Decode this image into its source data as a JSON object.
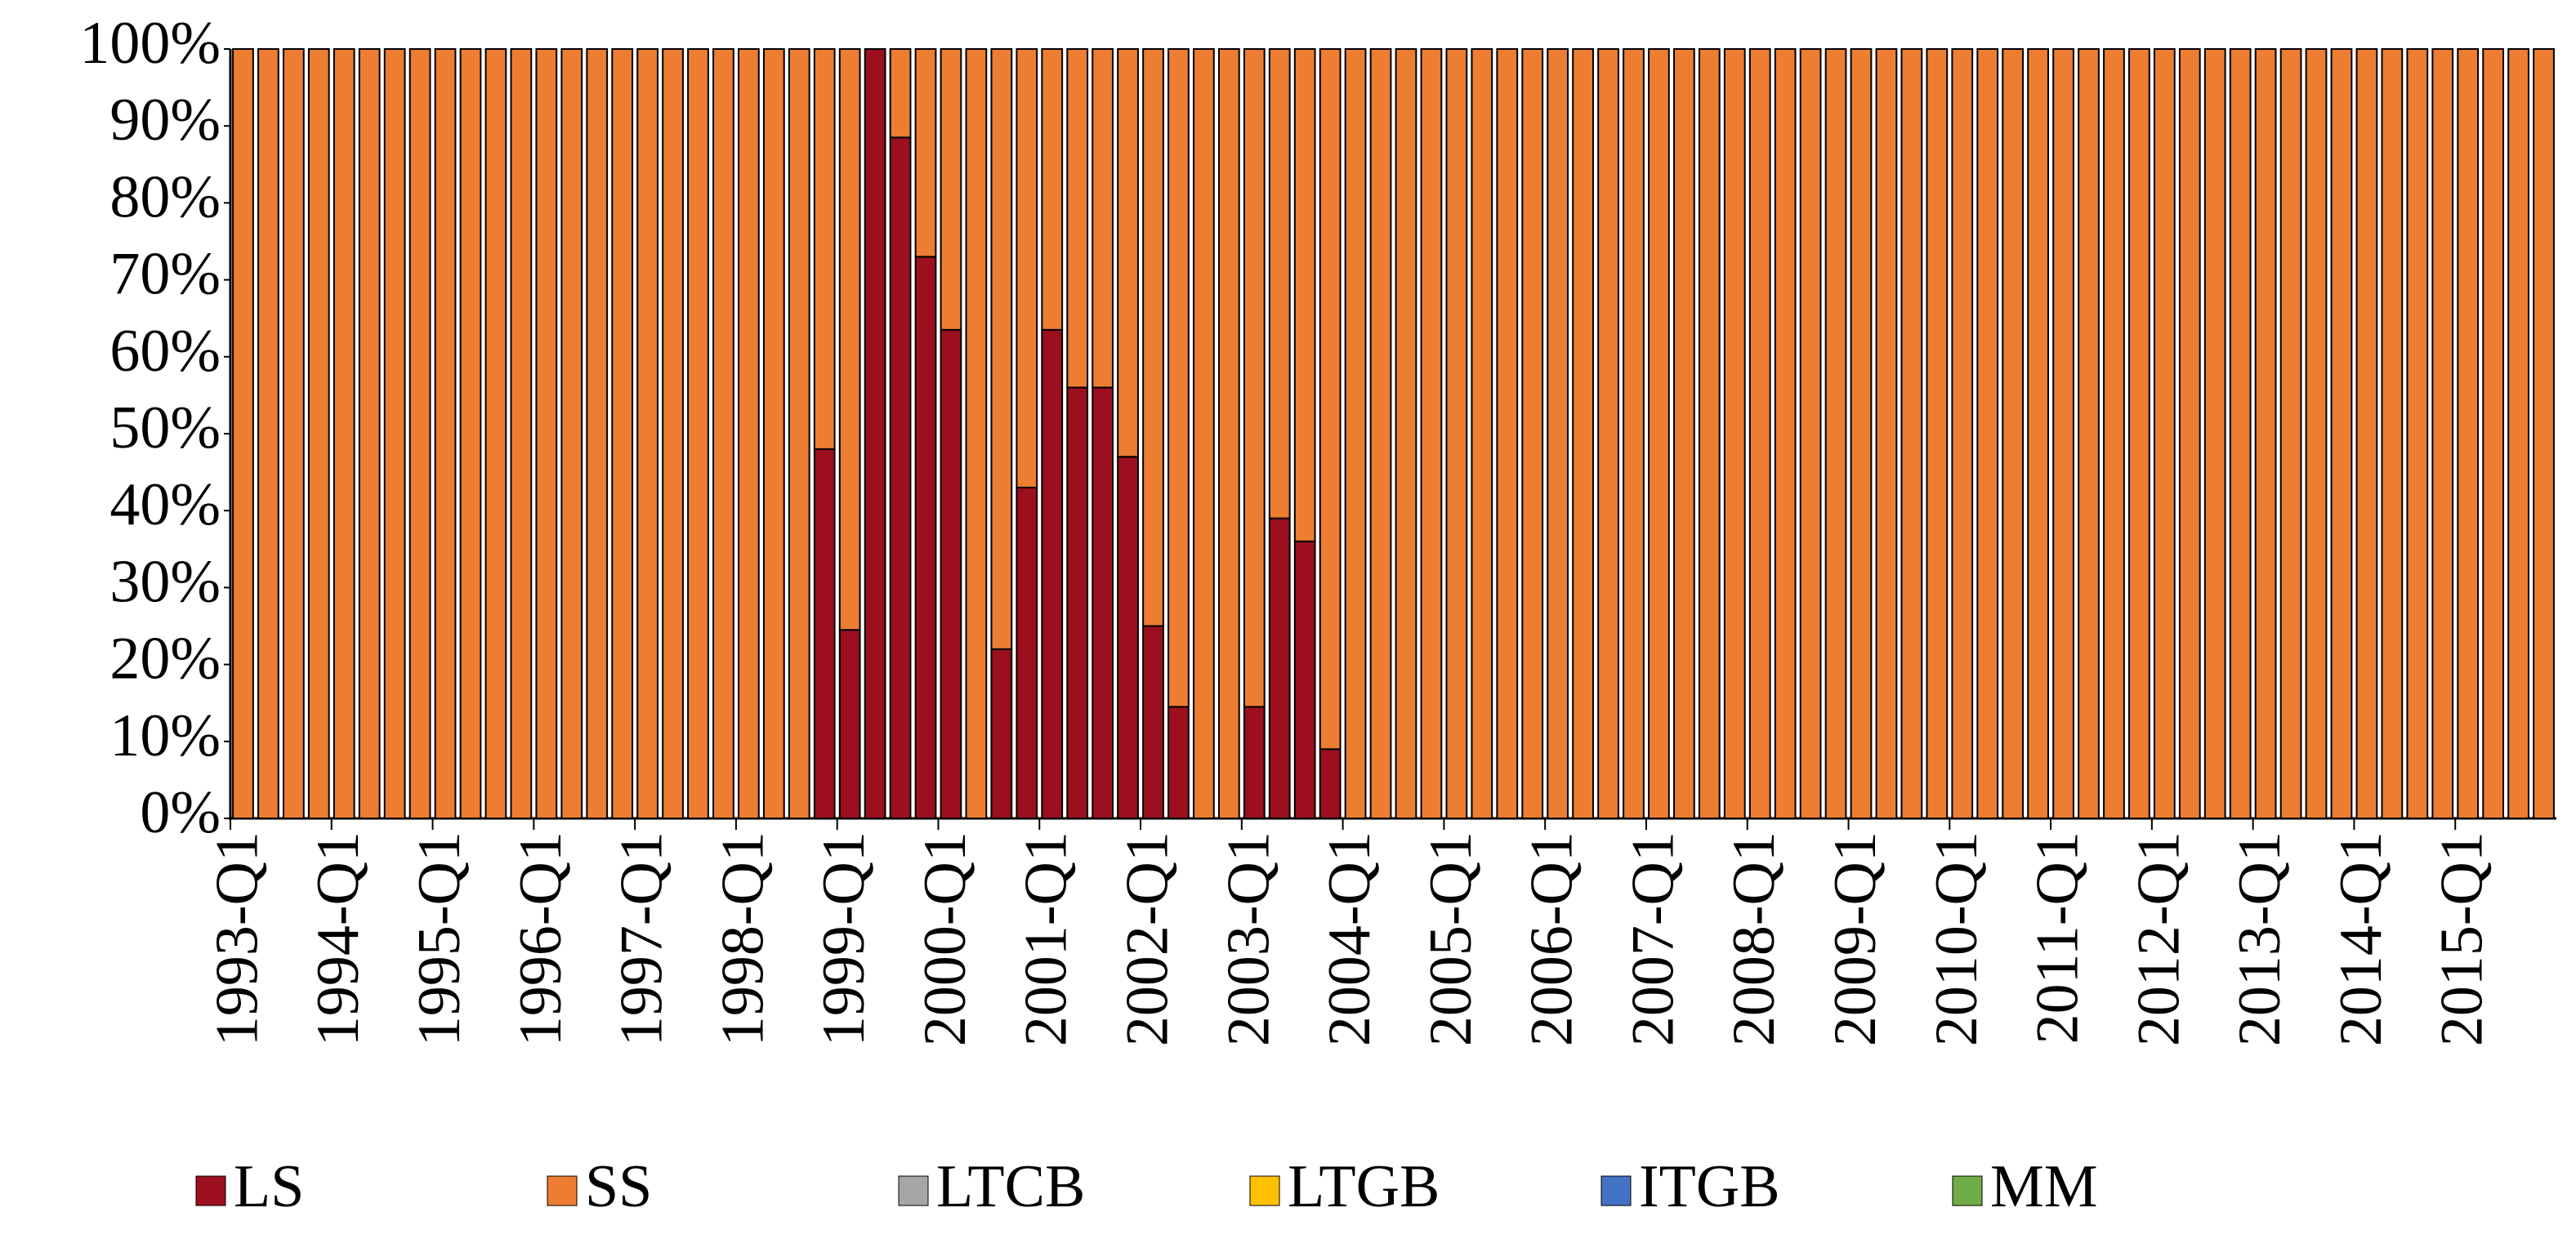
{
  "chart_data": {
    "type": "stacked_bar",
    "categories": [
      "1993-Q1",
      null,
      null,
      null,
      "1994-Q1",
      null,
      null,
      null,
      "1995-Q1",
      null,
      null,
      null,
      "1996-Q1",
      null,
      null,
      null,
      "1997-Q1",
      null,
      null,
      null,
      "1998-Q1",
      null,
      null,
      null,
      "1999-Q1",
      null,
      null,
      null,
      "2000-Q1",
      null,
      null,
      null,
      "2001-Q1",
      null,
      null,
      null,
      "2002-Q1",
      null,
      null,
      null,
      "2003-Q1",
      null,
      null,
      null,
      "2004-Q1",
      null,
      null,
      null,
      "2005-Q1",
      null,
      null,
      null,
      "2006-Q1",
      null,
      null,
      null,
      "2007-Q1",
      null,
      null,
      null,
      "2008-Q1",
      null,
      null,
      null,
      "2009-Q1",
      null,
      null,
      null,
      "2010-Q1",
      null,
      null,
      null,
      "2011-Q1",
      null,
      null,
      null,
      "2012-Q1",
      null,
      null,
      null,
      "2013-Q1",
      null,
      null,
      null,
      "2014-Q1",
      null,
      null,
      null,
      "2015-Q1",
      null,
      null,
      null
    ],
    "series": [
      {
        "name": "LS",
        "color": "#9b0f1e",
        "values": [
          0,
          0,
          0,
          0,
          0,
          0,
          0,
          0,
          0,
          0,
          0,
          0,
          0,
          0,
          0,
          0,
          0,
          0,
          0,
          0,
          0,
          0,
          0,
          48,
          24.5,
          100,
          88.5,
          73,
          63.5,
          0,
          22,
          43,
          63.5,
          56,
          56,
          47,
          25,
          14.5,
          0,
          0,
          14.5,
          39,
          36,
          9,
          0,
          0,
          0,
          0,
          0,
          0,
          0,
          0,
          0,
          0,
          0,
          0,
          0,
          0,
          0,
          0,
          0,
          0,
          0,
          0,
          0,
          0,
          0,
          0,
          0,
          0,
          0,
          0,
          0,
          0,
          0,
          0,
          0,
          0,
          0,
          0,
          0,
          0,
          0,
          0,
          0,
          0,
          0,
          0,
          0,
          0,
          0,
          0
        ]
      },
      {
        "name": "SS",
        "color": "#ed7d31",
        "values": [
          100,
          100,
          100,
          100,
          100,
          100,
          100,
          100,
          100,
          100,
          100,
          100,
          100,
          100,
          100,
          100,
          100,
          100,
          100,
          100,
          100,
          100,
          100,
          52,
          75.5,
          0,
          11.5,
          27,
          36.5,
          100,
          78,
          57,
          36.5,
          44,
          44,
          53,
          75,
          85.5,
          100,
          100,
          85.5,
          61,
          64,
          91,
          100,
          100,
          100,
          100,
          100,
          100,
          100,
          100,
          100,
          100,
          100,
          100,
          100,
          100,
          100,
          100,
          100,
          100,
          100,
          100,
          100,
          100,
          100,
          100,
          100,
          100,
          100,
          100,
          100,
          100,
          100,
          100,
          100,
          100,
          100,
          100,
          100,
          100,
          100,
          100,
          100,
          100,
          100,
          100,
          100,
          100,
          100,
          100
        ]
      },
      {
        "name": "LTCB",
        "color": "#a5a5a5",
        "values": [
          0,
          0,
          0,
          0,
          0,
          0,
          0,
          0,
          0,
          0,
          0,
          0,
          0,
          0,
          0,
          0,
          0,
          0,
          0,
          0,
          0,
          0,
          0,
          0,
          0,
          0,
          0,
          0,
          0,
          0,
          0,
          0,
          0,
          0,
          0,
          0,
          0,
          0,
          0,
          0,
          0,
          0,
          0,
          0,
          0,
          0,
          0,
          0,
          0,
          0,
          0,
          0,
          0,
          0,
          0,
          0,
          0,
          0,
          0,
          0,
          0,
          0,
          0,
          0,
          0,
          0,
          0,
          0,
          0,
          0,
          0,
          0,
          0,
          0,
          0,
          0,
          0,
          0,
          0,
          0,
          0,
          0,
          0,
          0,
          0,
          0,
          0,
          0,
          0,
          0,
          0,
          0
        ]
      },
      {
        "name": "LTGB",
        "color": "#ffc000",
        "values": [
          0,
          0,
          0,
          0,
          0,
          0,
          0,
          0,
          0,
          0,
          0,
          0,
          0,
          0,
          0,
          0,
          0,
          0,
          0,
          0,
          0,
          0,
          0,
          0,
          0,
          0,
          0,
          0,
          0,
          0,
          0,
          0,
          0,
          0,
          0,
          0,
          0,
          0,
          0,
          0,
          0,
          0,
          0,
          0,
          0,
          0,
          0,
          0,
          0,
          0,
          0,
          0,
          0,
          0,
          0,
          0,
          0,
          0,
          0,
          0,
          0,
          0,
          0,
          0,
          0,
          0,
          0,
          0,
          0,
          0,
          0,
          0,
          0,
          0,
          0,
          0,
          0,
          0,
          0,
          0,
          0,
          0,
          0,
          0,
          0,
          0,
          0,
          0,
          0,
          0,
          0,
          0
        ]
      },
      {
        "name": "ITGB",
        "color": "#4472c4",
        "values": [
          0,
          0,
          0,
          0,
          0,
          0,
          0,
          0,
          0,
          0,
          0,
          0,
          0,
          0,
          0,
          0,
          0,
          0,
          0,
          0,
          0,
          0,
          0,
          0,
          0,
          0,
          0,
          0,
          0,
          0,
          0,
          0,
          0,
          0,
          0,
          0,
          0,
          0,
          0,
          0,
          0,
          0,
          0,
          0,
          0,
          0,
          0,
          0,
          0,
          0,
          0,
          0,
          0,
          0,
          0,
          0,
          0,
          0,
          0,
          0,
          0,
          0,
          0,
          0,
          0,
          0,
          0,
          0,
          0,
          0,
          0,
          0,
          0,
          0,
          0,
          0,
          0,
          0,
          0,
          0,
          0,
          0,
          0,
          0,
          0,
          0,
          0,
          0,
          0,
          0,
          0,
          0
        ]
      },
      {
        "name": "MM",
        "color": "#70ad47",
        "values": [
          0,
          0,
          0,
          0,
          0,
          0,
          0,
          0,
          0,
          0,
          0,
          0,
          0,
          0,
          0,
          0,
          0,
          0,
          0,
          0,
          0,
          0,
          0,
          0,
          0,
          0,
          0,
          0,
          0,
          0,
          0,
          0,
          0,
          0,
          0,
          0,
          0,
          0,
          0,
          0,
          0,
          0,
          0,
          0,
          0,
          0,
          0,
          0,
          0,
          0,
          0,
          0,
          0,
          0,
          0,
          0,
          0,
          0,
          0,
          0,
          0,
          0,
          0,
          0,
          0,
          0,
          0,
          0,
          0,
          0,
          0,
          0,
          0,
          0,
          0,
          0,
          0,
          0,
          0,
          0,
          0,
          0,
          0,
          0,
          0,
          0,
          0,
          0,
          0,
          0,
          0,
          0
        ]
      }
    ],
    "ylim": [
      0,
      100
    ],
    "yticks": [
      {
        "value": 0,
        "label": "0%"
      },
      {
        "value": 10,
        "label": "10%"
      },
      {
        "value": 20,
        "label": "20%"
      },
      {
        "value": 30,
        "label": "30%"
      },
      {
        "value": 40,
        "label": "40%"
      },
      {
        "value": 50,
        "label": "50%"
      },
      {
        "value": 60,
        "label": "60%"
      },
      {
        "value": 70,
        "label": "70%"
      },
      {
        "value": 80,
        "label": "80%"
      },
      {
        "value": 90,
        "label": "90%"
      },
      {
        "value": 100,
        "label": "100%"
      }
    ],
    "legend": "bottom"
  }
}
